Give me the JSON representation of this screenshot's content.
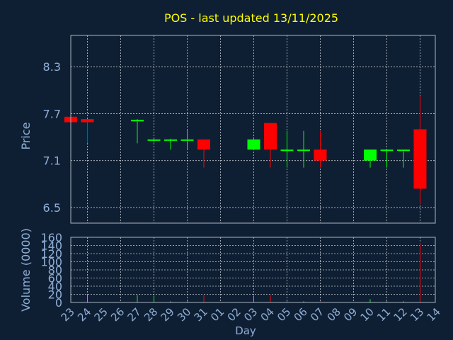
{
  "chart_data": [
    {
      "type": "candlestick",
      "title": "POS - last updated 13/11/2025",
      "ylabel": "Price",
      "ylim": [
        6.3,
        8.7
      ],
      "yticks": [
        6.5,
        7.1,
        7.7,
        8.3
      ],
      "ytick_labels": [
        "6.5",
        "7.1",
        "7.7",
        "8.3"
      ],
      "grid": true,
      "categories": [
        "23",
        "24",
        "25",
        "26",
        "27",
        "28",
        "29",
        "30",
        "31",
        "01",
        "02",
        "03",
        "04",
        "05",
        "06",
        "07",
        "08",
        "09",
        "10",
        "11",
        "12",
        "13",
        "14"
      ],
      "candles": [
        {
          "day": "23",
          "open": 7.66,
          "close": 7.59,
          "high": 7.66,
          "low": 7.59
        },
        {
          "day": "24",
          "open": 7.63,
          "close": 7.59,
          "high": 7.63,
          "low": 7.32
        },
        {
          "day": "27",
          "open": 7.62,
          "close": 7.62,
          "high": 7.63,
          "low": 7.32
        },
        {
          "day": "28",
          "open": 7.37,
          "close": 7.37,
          "high": 7.38,
          "low": 7.33
        },
        {
          "day": "29",
          "open": 7.37,
          "close": 7.37,
          "high": 7.38,
          "low": 7.24
        },
        {
          "day": "30",
          "open": 7.37,
          "close": 7.37,
          "high": 7.49,
          "low": 7.25
        },
        {
          "day": "31",
          "open": 7.37,
          "close": 7.24,
          "high": 7.37,
          "low": 7.01
        },
        {
          "day": "03",
          "open": 7.24,
          "close": 7.37,
          "high": 7.4,
          "low": 7.24
        },
        {
          "day": "04",
          "open": 7.58,
          "close": 7.24,
          "high": 7.58,
          "low": 7.01
        },
        {
          "day": "05",
          "open": 7.24,
          "close": 7.24,
          "high": 7.48,
          "low": 7.01
        },
        {
          "day": "06",
          "open": 7.24,
          "close": 7.24,
          "high": 7.48,
          "low": 7.01
        },
        {
          "day": "07",
          "open": 7.24,
          "close": 7.1,
          "high": 7.48,
          "low": 7.01
        },
        {
          "day": "10",
          "open": 7.1,
          "close": 7.24,
          "high": 7.24,
          "low": 7.01
        },
        {
          "day": "11",
          "open": 7.24,
          "close": 7.24,
          "high": 7.24,
          "low": 7.01
        },
        {
          "day": "12",
          "open": 7.24,
          "close": 7.24,
          "high": 7.24,
          "low": 7.01
        },
        {
          "day": "13",
          "open": 7.5,
          "close": 6.74,
          "high": 7.93,
          "low": 6.54
        }
      ],
      "colors": {
        "up": "#00ff00",
        "down": "#ff0000"
      }
    },
    {
      "type": "bar",
      "ylabel": "Volume (0000)",
      "xlabel": "Day",
      "ylim": [
        0,
        160
      ],
      "yticks": [
        0,
        20,
        40,
        60,
        80,
        100,
        120,
        140,
        160
      ],
      "ytick_labels": [
        "0",
        "20",
        "40",
        "60",
        "80",
        "100",
        "120",
        "140",
        "160"
      ],
      "grid": true,
      "categories": [
        "23",
        "24",
        "25",
        "26",
        "27",
        "28",
        "29",
        "30",
        "31",
        "01",
        "02",
        "03",
        "04",
        "05",
        "06",
        "07",
        "08",
        "09",
        "10",
        "11",
        "12",
        "13",
        "14"
      ],
      "values": [
        {
          "day": "23",
          "value": 5,
          "color": "#ff0000"
        },
        {
          "day": "24",
          "value": 18,
          "color": "#00ff00"
        },
        {
          "day": "27",
          "value": 18,
          "color": "#00ff00"
        },
        {
          "day": "28",
          "value": 16,
          "color": "#00ff00"
        },
        {
          "day": "29",
          "value": 3,
          "color": "#00ff00"
        },
        {
          "day": "30",
          "value": 3,
          "color": "#00ff00"
        },
        {
          "day": "31",
          "value": 18,
          "color": "#ff0000"
        },
        {
          "day": "03",
          "value": 16,
          "color": "#00ff00"
        },
        {
          "day": "04",
          "value": 18,
          "color": "#ff0000"
        },
        {
          "day": "05",
          "value": 3,
          "color": "#00ff00"
        },
        {
          "day": "06",
          "value": 3,
          "color": "#00ff00"
        },
        {
          "day": "07",
          "value": 3,
          "color": "#ff0000"
        },
        {
          "day": "10",
          "value": 8,
          "color": "#00ff00"
        },
        {
          "day": "11",
          "value": 3,
          "color": "#00ff00"
        },
        {
          "day": "12",
          "value": 3,
          "color": "#00ff00"
        },
        {
          "day": "13",
          "value": 146,
          "color": "#ff0000"
        }
      ]
    }
  ],
  "colors": {
    "background": "#0f1f33",
    "title": "#ffff00",
    "axis_text": "#8faed6",
    "frame": "#aab4c0",
    "grid": "#ffffff"
  }
}
